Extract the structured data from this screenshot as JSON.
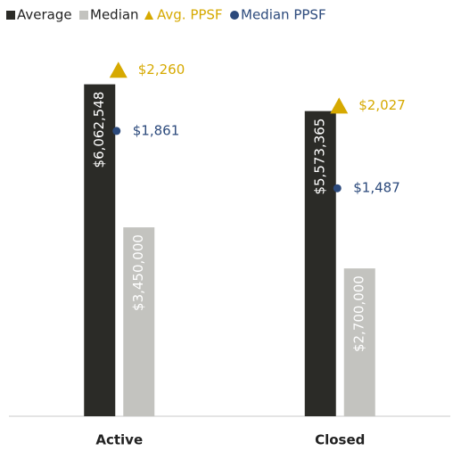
{
  "chart_data": {
    "type": "bar",
    "categories": [
      "Active",
      "Closed"
    ],
    "ylim": [
      0,
      7000000
    ],
    "y2lim": [
      0,
      2500
    ],
    "series": [
      {
        "name": "Average",
        "color": "#2b2b27",
        "values": [
          6062548,
          5573365
        ],
        "value_labels": [
          "$6,062,548",
          "$5,573,365"
        ]
      },
      {
        "name": "Median",
        "color": "#c3c3bf",
        "values": [
          3450000,
          2700000
        ],
        "value_labels": [
          "$3,450,000",
          "$2,700,000"
        ]
      },
      {
        "name": "Avg. PPSF",
        "color": "#d6a900",
        "marker": "triangle",
        "axis": "y2",
        "values": [
          2260,
          2027
        ],
        "value_labels": [
          "$2,260",
          "$2,027"
        ]
      },
      {
        "name": "Median PPSF",
        "color": "#2c4a7c",
        "marker": "circle",
        "axis": "y2",
        "values": [
          1861,
          1487
        ],
        "value_labels": [
          "$1,861",
          "$1,487"
        ]
      }
    ]
  }
}
